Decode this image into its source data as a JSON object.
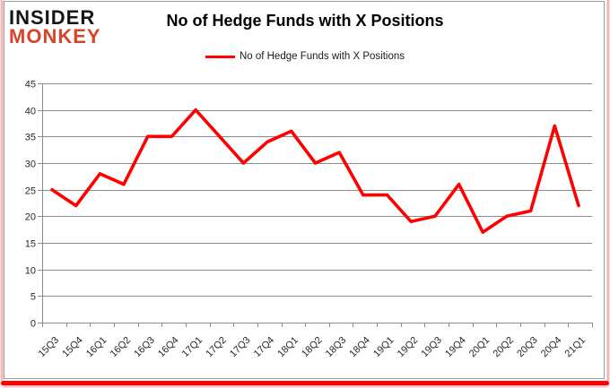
{
  "logo": {
    "line1": "INSIDER",
    "line2": "MONKEY"
  },
  "header": {
    "title": "No of Hedge Funds with X Positions"
  },
  "legend": {
    "label": "No of Hedge Funds with X Positions"
  },
  "chart_data": {
    "type": "line",
    "title": "No of Hedge Funds with X Positions",
    "categories": [
      "15Q3",
      "15Q4",
      "16Q1",
      "16Q2",
      "16Q3",
      "16Q4",
      "17Q1",
      "17Q2",
      "17Q3",
      "17Q4",
      "18Q1",
      "18Q2",
      "18Q3",
      "18Q4",
      "19Q1",
      "19Q2",
      "19Q3",
      "19Q4",
      "20Q1",
      "20Q2",
      "20Q3",
      "20Q4",
      "21Q1"
    ],
    "series": [
      {
        "name": "No of Hedge Funds with X Positions",
        "values": [
          25,
          22,
          28,
          26,
          35,
          35,
          40,
          35,
          30,
          34,
          36,
          30,
          32,
          24,
          24,
          19,
          20,
          26,
          17,
          20,
          21,
          37,
          22
        ]
      }
    ],
    "xlabel": "",
    "ylabel": "",
    "ylim": [
      0,
      45
    ],
    "ytick_step": 5,
    "grid": true,
    "legend_position": "top",
    "line_color": "#fe0000",
    "gridline_color": "#8c8c8c",
    "axis_text_color": "#262626"
  },
  "colors": {
    "accent_red": "#fe0000",
    "logo_red": "#d8432c",
    "frame_gray": "#9c9c9c",
    "border_pink": "#f2a5a3"
  }
}
